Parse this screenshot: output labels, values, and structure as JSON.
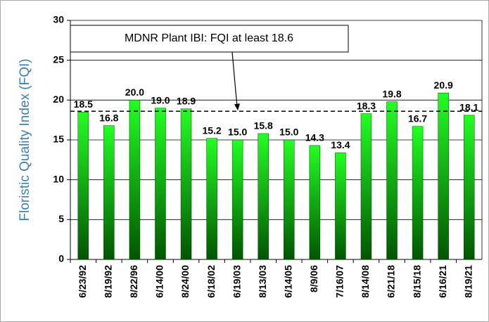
{
  "chart_data": {
    "type": "bar",
    "y_axis_label": "Floristic Quality Index (FQI)",
    "annotation": "MDNR Plant IBI: FQI at least 18.6",
    "threshold": 18.6,
    "categories": [
      "6/23/92",
      "8/19/92",
      "8/22/96",
      "6/14/00",
      "8/24/00",
      "6/18/02",
      "6/19/03",
      "8/13/03",
      "6/14/05",
      "8/9/06",
      "7/16/07",
      "8/14/08",
      "6/21/18",
      "8/15/18",
      "6/16/21",
      "8/19/21"
    ],
    "values": [
      18.5,
      16.8,
      20.0,
      19.0,
      18.9,
      15.2,
      15.0,
      15.8,
      15.0,
      14.3,
      13.4,
      18.3,
      19.8,
      16.7,
      20.9,
      18.1
    ],
    "value_labels": [
      "18.5",
      "16.8",
      "20.0",
      "19.0",
      "18.9",
      "15.2",
      "15.0",
      "15.8",
      "15.0",
      "14.3",
      "13.4",
      "18.3",
      "19.8",
      "16.7",
      "20.9",
      "18.1"
    ],
    "color": "#00dd00",
    "ylim": [
      0,
      30
    ],
    "yticks": [
      0,
      5,
      10,
      15,
      20,
      25,
      30
    ],
    "grid": true
  }
}
